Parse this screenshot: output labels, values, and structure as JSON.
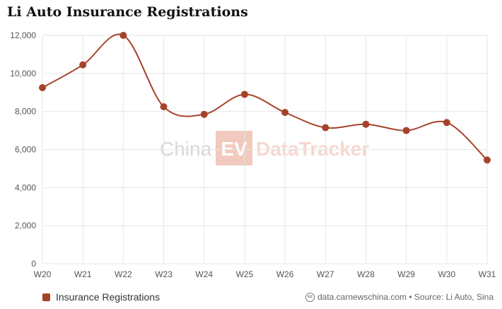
{
  "chart_data": {
    "type": "line",
    "title": "Li Auto Insurance Registrations",
    "categories": [
      "W20",
      "W21",
      "W22",
      "W23",
      "W24",
      "W25",
      "W26",
      "W27",
      "W28",
      "W29",
      "W30",
      "W31"
    ],
    "series": [
      {
        "name": "Insurance Registrations",
        "values": [
          9250,
          10450,
          12000,
          8250,
          7850,
          8900,
          7950,
          7150,
          7330,
          7000,
          7420,
          5450
        ]
      }
    ],
    "yticks": [
      0,
      2000,
      4000,
      6000,
      8000,
      10000,
      12000
    ],
    "ytick_labels": [
      "0",
      "2,000",
      "4,000",
      "6,000",
      "8,000",
      "10,000",
      "12,000"
    ],
    "ylim": [
      0,
      12000
    ],
    "xlabel": "",
    "ylabel": "",
    "grid": true,
    "legend_position": "bottom-left"
  },
  "colors": {
    "series": "#a5432a",
    "grid": "#e6e6e6",
    "watermark_gray": "#d7d7d7",
    "watermark_accent": "#f6d8cf",
    "watermark_box": "#f1cabd"
  },
  "watermark": {
    "part1": "China",
    "part2": "EV",
    "part3": "DataTracker"
  },
  "credits": {
    "icon": "creative-commons-icon",
    "icon_text": "cc",
    "text": "data.carnewschina.com • Source: Li Auto, Sina"
  }
}
